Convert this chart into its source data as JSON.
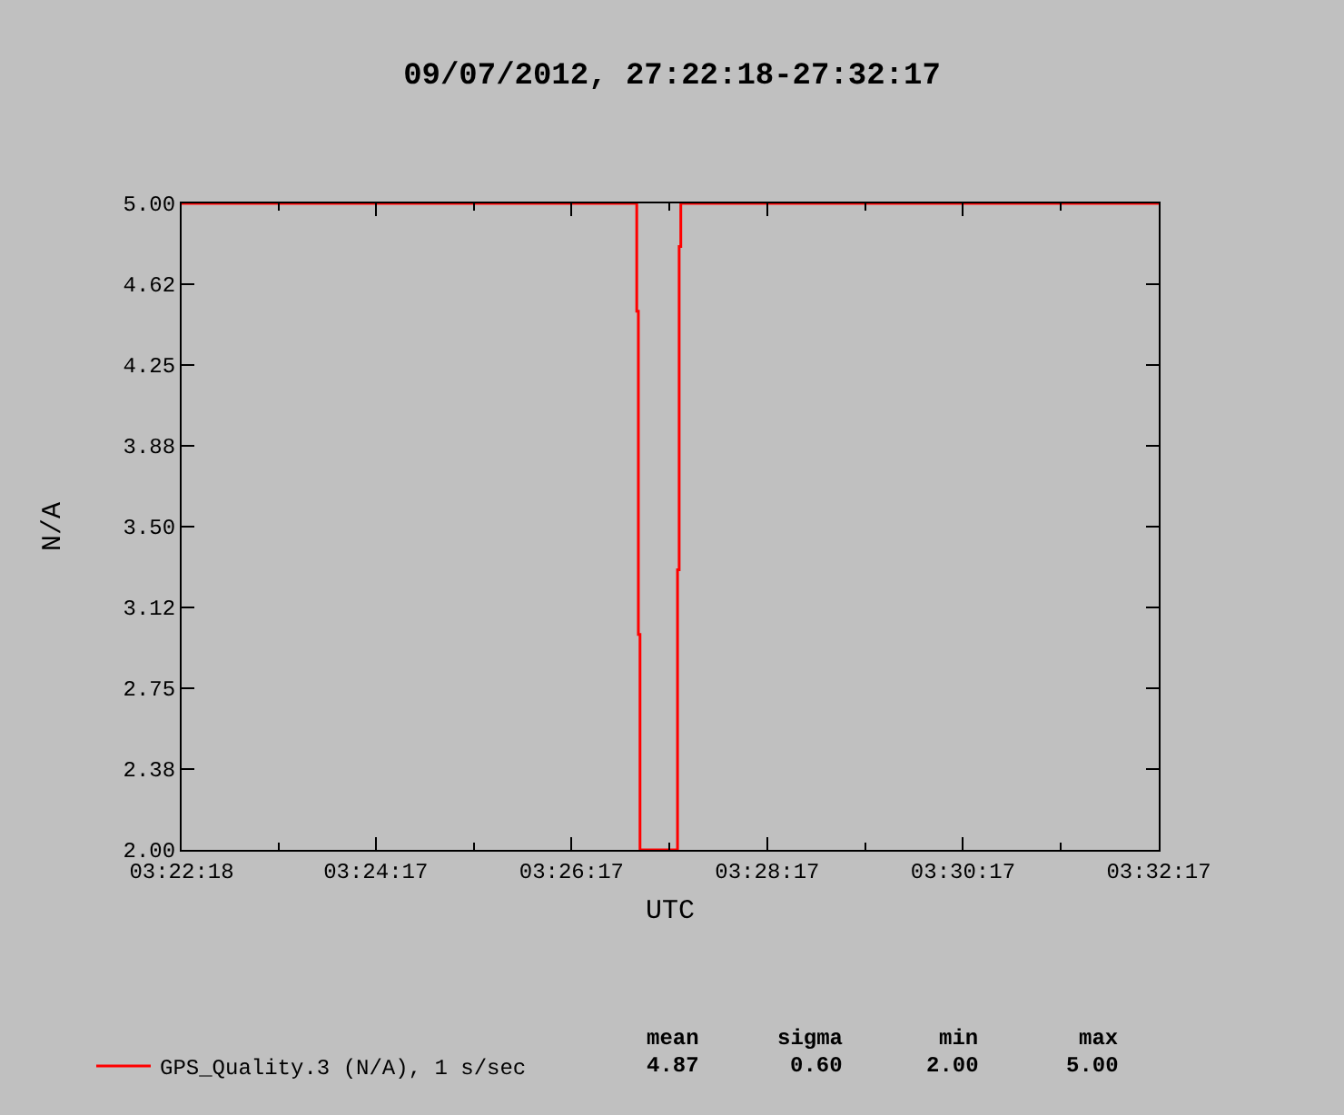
{
  "chart_data": {
    "type": "step",
    "title": "09/07/2012, 27:22:18-27:32:17",
    "xlabel": "UTC",
    "ylabel": "N/A",
    "x": [
      3.371667,
      3.449167,
      3.449444,
      3.449722,
      3.456111,
      3.456389,
      3.456667,
      3.538056
    ],
    "series": [
      {
        "name": "GPS_Quality.3 (N/A), 1 s/sec",
        "color": "#ff0000",
        "values": [
          5,
          4.5,
          3,
          2,
          3.3,
          4.8,
          5,
          5
        ]
      }
    ],
    "xlim": [
      3.371667,
      3.538056
    ],
    "xticks": [
      {
        "value": 3.371667,
        "label": "03:22:18"
      },
      {
        "value": 3.404722,
        "label": "03:24:17"
      },
      {
        "value": 3.438056,
        "label": "03:26:17"
      },
      {
        "value": 3.471389,
        "label": "03:28:17"
      },
      {
        "value": 3.504722,
        "label": "03:30:17"
      },
      {
        "value": 3.538056,
        "label": "03:32:17"
      }
    ],
    "ylim": [
      2,
      5
    ],
    "yticks": [
      {
        "value": 2,
        "label": "2.00"
      },
      {
        "value": 2.375,
        "label": "2.38"
      },
      {
        "value": 2.75,
        "label": "2.75"
      },
      {
        "value": 3.125,
        "label": "3.12"
      },
      {
        "value": 3.5,
        "label": "3.50"
      },
      {
        "value": 3.875,
        "label": "3.88"
      },
      {
        "value": 4.25,
        "label": "4.25"
      },
      {
        "value": 4.625,
        "label": "4.62"
      },
      {
        "value": 5,
        "label": "5.00"
      }
    ],
    "annotations": [
      "mean",
      "sigma",
      "min",
      "max",
      "4.87",
      "0.60",
      "2.00",
      "5.00"
    ],
    "grid": false,
    "legend": "bottom",
    "marker": "none",
    "line_style": "solid"
  }
}
